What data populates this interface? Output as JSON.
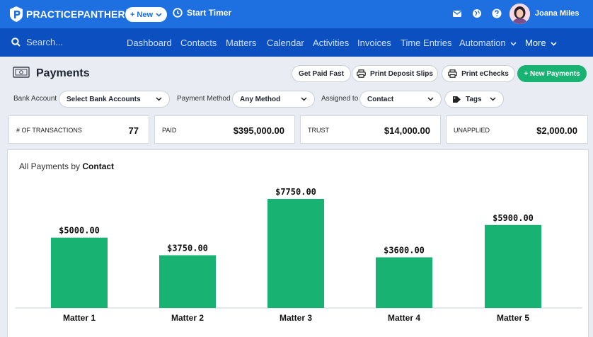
{
  "app": {
    "name": "PRACTICEPANTHER",
    "trademark": "®"
  },
  "topbar": {
    "new_label": "+ New",
    "timer_label": "Start Timer",
    "user_name": "Joana Miles"
  },
  "nav": {
    "search_placeholder": "Search...",
    "items": [
      "Dashboard",
      "Contacts",
      "Matters",
      "Calendar",
      "Activities",
      "Invoices",
      "Time Entries",
      "Automation",
      "More"
    ]
  },
  "page": {
    "title": "Payments",
    "buttons": {
      "get_paid": "Get Paid Fast",
      "print_deposit": "Print Deposit Slips",
      "print_echecks": "Print eChecks",
      "new_payments": "+ New Payments"
    }
  },
  "filters": {
    "bank_label": "Bank Account",
    "bank_value": "Select Bank Accounts",
    "method_label": "Payment Method",
    "method_value": "Any Method",
    "assigned_label": "Assigned to",
    "assigned_value": "Contact",
    "tags_value": "Tags"
  },
  "stats": [
    {
      "label": "# OF TRANSACTIONS",
      "value": "77"
    },
    {
      "label": "PAID",
      "value": "$395,000.00"
    },
    {
      "label": "TRUST",
      "value": "$14,000.00"
    },
    {
      "label": "UNAPPLIED",
      "value": "$2,000.00"
    }
  ],
  "chart_title_prefix": "All Payments by ",
  "chart_title_bold": "Contact",
  "colors": {
    "brand": "#1e6fe0",
    "nav": "#0b4fc1",
    "bar": "#18b272"
  },
  "chart_data": {
    "type": "bar",
    "categories": [
      "Matter 1",
      "Matter 2",
      "Matter 3",
      "Matter 4",
      "Matter 5"
    ],
    "values": [
      5000,
      3750,
      7750,
      3600,
      5900
    ],
    "data_labels": [
      "$5000.00",
      "$3750.00",
      "$7750.00",
      "$3600.00",
      "$5900.00"
    ],
    "grid": false
  }
}
